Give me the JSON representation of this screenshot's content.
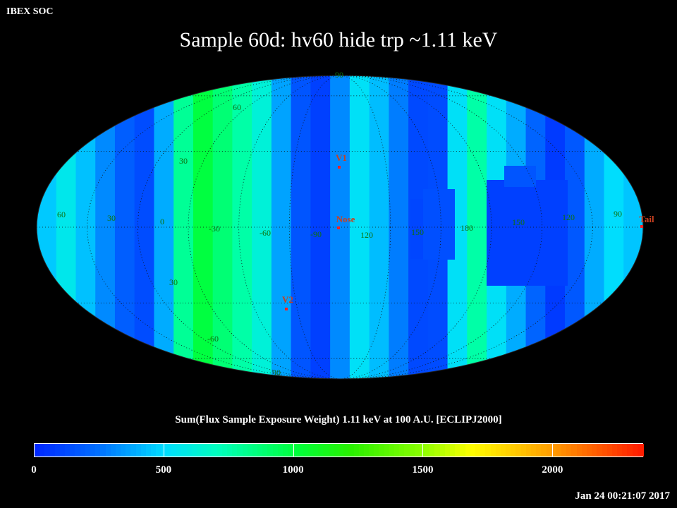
{
  "header_label": "IBEX SOC",
  "title": "Sample 60d: hv60 hide trp ~1.11 keV",
  "colorbar": {
    "title": "Sum(Flux Sample Exposure Weight)  1.11 keV at 100 A.U. [ECLIPJ2000]",
    "min": 0,
    "max": 2350,
    "ticks": [
      "0",
      "500",
      "1000",
      "1500",
      "2000"
    ],
    "tick_values": [
      0,
      500,
      1000,
      1500,
      2000
    ]
  },
  "timestamp": "Jan 24 00:21:07 2017",
  "projection": "Aitoff-Hammer all-sky, ecliptic J2000",
  "grid_labels": {
    "longitude": [
      "60",
      "30",
      "0",
      "-30",
      "-60",
      "-90",
      "120",
      "150",
      "180",
      "150",
      "120",
      "90"
    ],
    "latitude": [
      "90",
      "60",
      "30",
      "30",
      "-60",
      "90"
    ]
  },
  "markers": [
    {
      "name": "V1"
    },
    {
      "name": "Nose"
    },
    {
      "name": "V2"
    },
    {
      "name": "Tail"
    }
  ],
  "colors": {
    "map_outline": "#ffffff",
    "marker": "#ff2020",
    "marker_label": "#c84020",
    "grid_label": "#107010",
    "grid_line": "#101010"
  }
}
